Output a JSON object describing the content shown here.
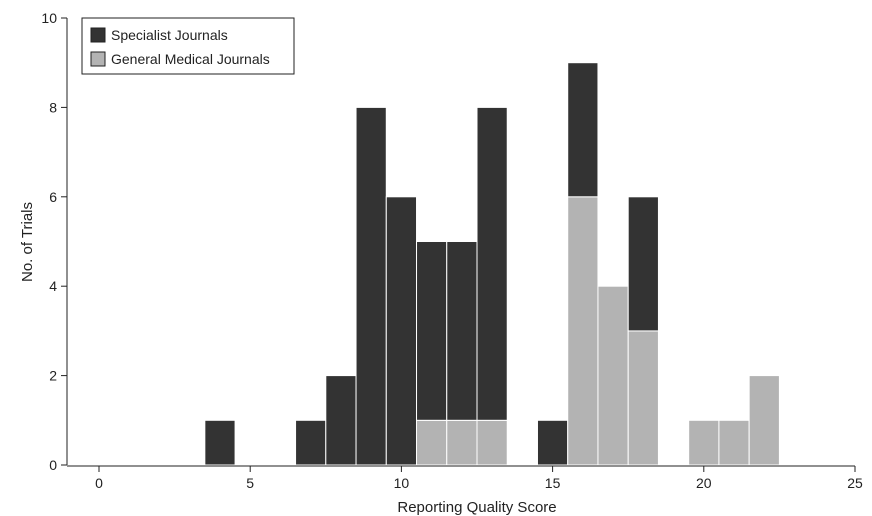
{
  "chart_data": {
    "type": "bar",
    "stacked": true,
    "xlabel": "Reporting Quality Score",
    "ylabel": "No. of Trials",
    "xlim": [
      0,
      25
    ],
    "ylim": [
      0,
      10
    ],
    "xticks": [
      0,
      5,
      10,
      15,
      20,
      25
    ],
    "yticks": [
      0,
      2,
      4,
      6,
      8,
      10
    ],
    "x": [
      4,
      7,
      8,
      9,
      10,
      11,
      12,
      13,
      15,
      16,
      17,
      18,
      20,
      21,
      22
    ],
    "series": [
      {
        "name": "General Medical Journals",
        "color": "#b3b3b3",
        "values": [
          0,
          0,
          0,
          0,
          0,
          1,
          1,
          1,
          0,
          6,
          4,
          3,
          1,
          1,
          2
        ]
      },
      {
        "name": "Specialist Journals",
        "color": "#333333",
        "values": [
          1,
          1,
          2,
          8,
          6,
          4,
          4,
          7,
          1,
          3,
          0,
          3,
          0,
          0,
          0
        ]
      }
    ],
    "legend_order": [
      "Specialist Journals",
      "General Medical Journals"
    ],
    "legend": "top-left",
    "grid": false
  }
}
